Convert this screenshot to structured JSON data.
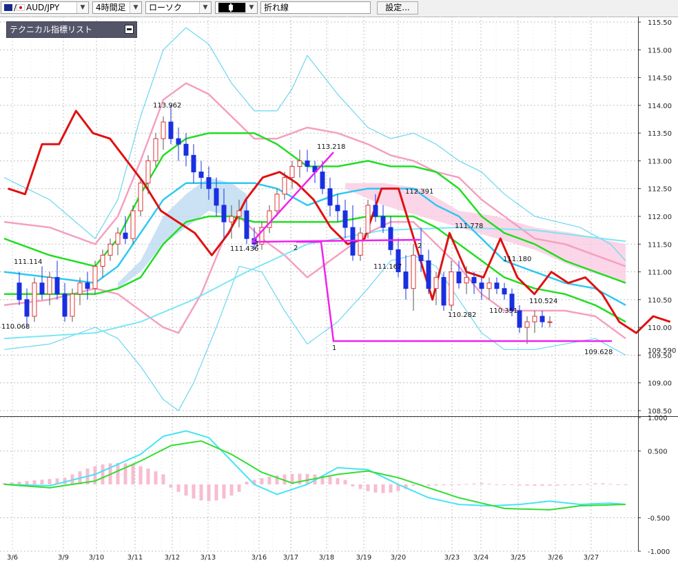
{
  "toolbar": {
    "symbol": "AUD/JPY",
    "symbol_prefix": "/",
    "timeframe": "4時間足",
    "chart_type": "ローソク",
    "line_tool": "折れ線",
    "settings_button": "設定..."
  },
  "panel": {
    "indicator_list": "テクニカル指標リスト"
  },
  "colors": {
    "up_candle": "#e03030",
    "down_candle": "#1a2fe0",
    "kumo": "#b8d8f0",
    "bollinger_mid": "#2ec8f0",
    "bollinger_outer": "#6ad6f0",
    "sigma_pink": "#f4a0c0",
    "ma_green": "#22dd22",
    "line_red": "#e01010",
    "zigzag": "#ee22ee"
  },
  "chart_data": [
    {
      "type": "candlestick",
      "title": "AUD/JPY",
      "ylim": [
        108.4,
        115.6
      ],
      "y_ticks": [
        "115.50",
        "115.00",
        "114.50",
        "114.00",
        "113.50",
        "113.00",
        "112.50",
        "112.00",
        "111.50",
        "111.00",
        "110.50",
        "110.00",
        "109.50",
        "109.00",
        "108.50"
      ],
      "x_ticks": [
        "3/6",
        "3/9",
        "3/10",
        "3/11",
        "3/12",
        "3/13",
        "3/16",
        "3/17",
        "3/18",
        "3/19",
        "3/20",
        "3/23",
        "3/24",
        "3/25",
        "3/26",
        "3/27"
      ],
      "current_price_label": "109.590",
      "annotations": [
        "113.962",
        "113.218",
        "112.391",
        "111.778",
        "111.180",
        "111.114",
        "111.436",
        "111.167",
        "110.524",
        "110.351",
        "110.282",
        "110.068",
        "109.628"
      ],
      "zigzag_labels": [
        "1",
        "2",
        "2",
        "1"
      ]
    },
    {
      "type": "line",
      "title": "MACD",
      "ylim": [
        -1.0,
        1.0
      ],
      "y_ticks": [
        "1.000",
        "0.500",
        "-0.500",
        "-1.000"
      ]
    }
  ]
}
